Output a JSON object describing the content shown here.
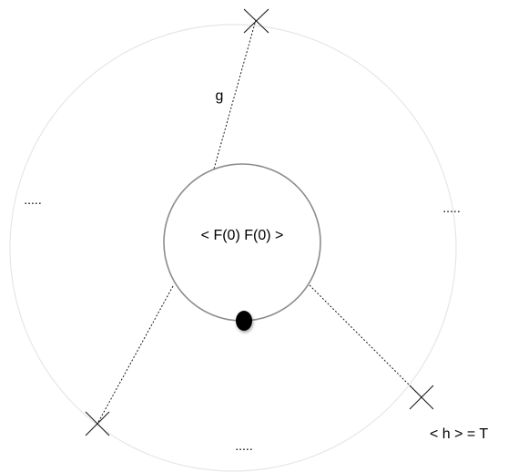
{
  "labels": {
    "center": "< F(0) F(0) >",
    "line_label": "g",
    "boundary_condition": "< h > = T",
    "ellipsis_left": ".....",
    "ellipsis_right": ".....",
    "ellipsis_bottom": "....."
  },
  "colors": {
    "outer_circle": "#e6e6e6",
    "inner_circle": "#8c8c8c",
    "lines": "#1a1a1a",
    "dot": "#000000"
  }
}
